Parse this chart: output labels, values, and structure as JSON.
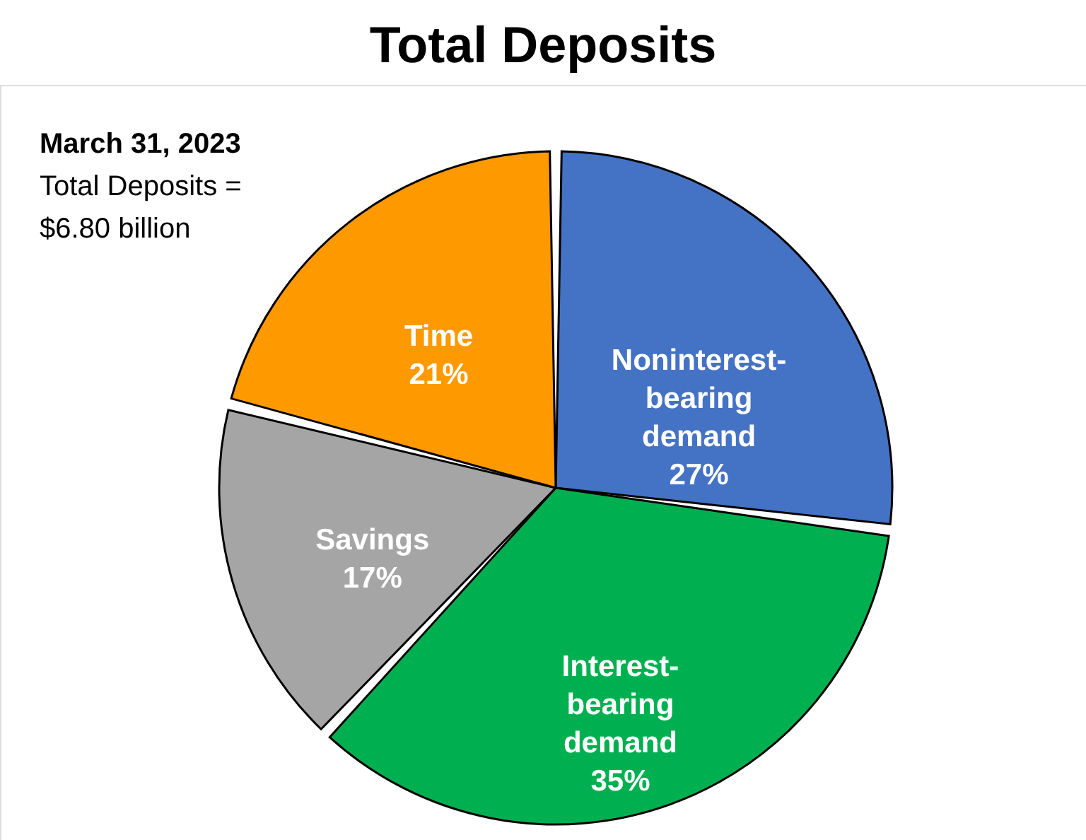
{
  "chart_data": {
    "type": "pie",
    "title": "Total Deposits",
    "categories": [
      "Noninterest-bearing demand",
      "Interest-bearing demand",
      "Savings",
      "Time"
    ],
    "values": [
      27,
      35,
      17,
      21
    ],
    "colors": [
      "#4472c4",
      "#00b050",
      "#a5a5a5",
      "#ff9900"
    ],
    "value_labels": [
      "27%",
      "35%",
      "17%",
      "21%"
    ],
    "legend": false,
    "annotations": [
      "March 31, 2023",
      "Total Deposits =",
      "$6.80 billion"
    ]
  }
}
